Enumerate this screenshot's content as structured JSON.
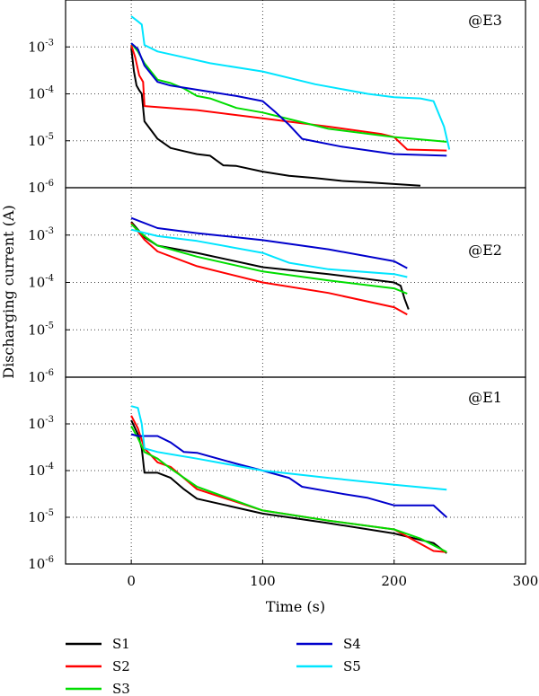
{
  "chart_data": {
    "type": "line",
    "xlabel": "Time (s)",
    "ylabel": "Discharging current (A)",
    "xlim": [
      -50,
      300
    ],
    "x_ticks": [
      "0",
      "100",
      "200",
      "300"
    ],
    "x_tick_values": [
      0,
      100,
      200,
      300
    ],
    "y_scale": "log",
    "ylim": [
      1e-06,
      0.01
    ],
    "y_tick_base": "10",
    "y_tick_exponents": [
      "-3",
      "-4",
      "-5",
      "-6"
    ],
    "grid": true,
    "legend_position": "bottom",
    "panels": [
      {
        "annotation": "@E3",
        "series": [
          {
            "name": "S1",
            "color": "#000000",
            "points": [
              [
                0,
                0.00095
              ],
              [
                2,
                0.0003
              ],
              [
                4,
                0.00015
              ],
              [
                6,
                0.00012
              ],
              [
                8,
                0.0001
              ],
              [
                10,
                2.6e-05
              ],
              [
                20,
                1.1e-05
              ],
              [
                30,
                7e-06
              ],
              [
                40,
                6e-06
              ],
              [
                50,
                5.2e-06
              ],
              [
                60,
                4.8e-06
              ],
              [
                70,
                3e-06
              ],
              [
                80,
                2.9e-06
              ],
              [
                100,
                2.2e-06
              ],
              [
                120,
                1.8e-06
              ],
              [
                140,
                1.6e-06
              ],
              [
                160,
                1.4e-06
              ],
              [
                180,
                1.3e-06
              ],
              [
                200,
                1.2e-06
              ],
              [
                220,
                1.1e-06
              ]
            ]
          },
          {
            "name": "S2",
            "color": "#ff0000",
            "points": [
              [
                0,
                0.0011
              ],
              [
                3,
                0.0006
              ],
              [
                6,
                0.00025
              ],
              [
                9,
                0.00018
              ],
              [
                10,
                5.5e-05
              ],
              [
                50,
                4.5e-05
              ],
              [
                100,
                3e-05
              ],
              [
                150,
                2e-05
              ],
              [
                190,
                1.4e-05
              ],
              [
                200,
                1.2e-05
              ],
              [
                210,
                6.5e-06
              ],
              [
                240,
                6.2e-06
              ]
            ]
          },
          {
            "name": "S3",
            "color": "#00dd00",
            "points": [
              [
                0,
                0.0012
              ],
              [
                5,
                0.0008
              ],
              [
                10,
                0.00045
              ],
              [
                15,
                0.0003
              ],
              [
                20,
                0.0002
              ],
              [
                30,
                0.00017
              ],
              [
                40,
                0.00013
              ],
              [
                50,
                9e-05
              ],
              [
                60,
                8e-05
              ],
              [
                80,
                5e-05
              ],
              [
                100,
                4e-05
              ],
              [
                150,
                1.8e-05
              ],
              [
                200,
                1.2e-05
              ],
              [
                240,
                9.5e-06
              ]
            ]
          },
          {
            "name": "S4",
            "color": "#0000cc",
            "points": [
              [
                0,
                0.0012
              ],
              [
                5,
                0.0009
              ],
              [
                10,
                0.0004
              ],
              [
                20,
                0.00018
              ],
              [
                30,
                0.00015
              ],
              [
                60,
                0.00011
              ],
              [
                80,
                9e-05
              ],
              [
                100,
                7e-05
              ],
              [
                110,
                4e-05
              ],
              [
                120,
                2.2e-05
              ],
              [
                130,
                1.1e-05
              ],
              [
                160,
                7.5e-06
              ],
              [
                200,
                5.2e-06
              ],
              [
                240,
                4.8e-06
              ]
            ]
          },
          {
            "name": "S5",
            "color": "#00e5ff",
            "points": [
              [
                0,
                0.0045
              ],
              [
                5,
                0.0035
              ],
              [
                8,
                0.003
              ],
              [
                10,
                0.0011
              ],
              [
                20,
                0.0008
              ],
              [
                40,
                0.0006
              ],
              [
                60,
                0.00045
              ],
              [
                100,
                0.0003
              ],
              [
                140,
                0.00016
              ],
              [
                180,
                0.0001
              ],
              [
                200,
                8.5e-05
              ],
              [
                220,
                8e-05
              ],
              [
                230,
                7e-05
              ],
              [
                238,
                2e-05
              ],
              [
                242,
                6.5e-06
              ]
            ]
          }
        ]
      },
      {
        "annotation": "@E2",
        "series": [
          {
            "name": "S1",
            "color": "#000000",
            "points": [
              [
                0,
                0.0019
              ],
              [
                10,
                0.0009
              ],
              [
                20,
                0.0006
              ],
              [
                50,
                0.00042
              ],
              [
                100,
                0.00021
              ],
              [
                150,
                0.00015
              ],
              [
                200,
                0.0001
              ],
              [
                205,
                8.5e-05
              ],
              [
                208,
                4.5e-05
              ],
              [
                211,
                2.7e-05
              ]
            ]
          },
          {
            "name": "S2",
            "color": "#ff0000",
            "points": [
              [
                0,
                0.0018
              ],
              [
                10,
                0.0008
              ],
              [
                20,
                0.00045
              ],
              [
                50,
                0.00022
              ],
              [
                100,
                0.0001
              ],
              [
                150,
                6e-05
              ],
              [
                200,
                3e-05
              ],
              [
                210,
                2.1e-05
              ]
            ]
          },
          {
            "name": "S3",
            "color": "#00dd00",
            "points": [
              [
                0,
                0.0017
              ],
              [
                10,
                0.00095
              ],
              [
                20,
                0.0006
              ],
              [
                50,
                0.00035
              ],
              [
                100,
                0.00017
              ],
              [
                150,
                0.00011
              ],
              [
                200,
                7.5e-05
              ],
              [
                210,
                5.8e-05
              ]
            ]
          },
          {
            "name": "S4",
            "color": "#0000cc",
            "points": [
              [
                0,
                0.0023
              ],
              [
                20,
                0.0014
              ],
              [
                50,
                0.0011
              ],
              [
                100,
                0.00078
              ],
              [
                150,
                0.0005
              ],
              [
                200,
                0.00028
              ],
              [
                210,
                0.0002
              ]
            ]
          },
          {
            "name": "S5",
            "color": "#00e5ff",
            "points": [
              [
                0,
                0.0013
              ],
              [
                20,
                0.00095
              ],
              [
                50,
                0.00075
              ],
              [
                100,
                0.00042
              ],
              [
                120,
                0.00026
              ],
              [
                150,
                0.00019
              ],
              [
                200,
                0.00015
              ],
              [
                210,
                0.00013
              ]
            ]
          }
        ]
      },
      {
        "annotation": "@E1",
        "series": [
          {
            "name": "S1",
            "color": "#000000",
            "points": [
              [
                0,
                0.0012
              ],
              [
                5,
                0.0006
              ],
              [
                8,
                0.0003
              ],
              [
                10,
                9e-05
              ],
              [
                20,
                9e-05
              ],
              [
                30,
                7e-05
              ],
              [
                40,
                4e-05
              ],
              [
                50,
                2.5e-05
              ],
              [
                100,
                1.2e-05
              ],
              [
                150,
                7.5e-06
              ],
              [
                200,
                4.5e-06
              ],
              [
                230,
                2.8e-06
              ],
              [
                240,
                1.7e-06
              ]
            ]
          },
          {
            "name": "S2",
            "color": "#ff0000",
            "points": [
              [
                0,
                0.0015
              ],
              [
                5,
                0.0008
              ],
              [
                10,
                0.0003
              ],
              [
                20,
                0.00015
              ],
              [
                30,
                0.00012
              ],
              [
                50,
                4e-05
              ],
              [
                100,
                1.4e-05
              ],
              [
                150,
                8.5e-06
              ],
              [
                200,
                5.5e-06
              ],
              [
                230,
                1.9e-06
              ],
              [
                240,
                1.8e-06
              ]
            ]
          },
          {
            "name": "S3",
            "color": "#00dd00",
            "points": [
              [
                0,
                0.0009
              ],
              [
                5,
                0.0005
              ],
              [
                10,
                0.00025
              ],
              [
                20,
                0.00018
              ],
              [
                30,
                0.00011
              ],
              [
                50,
                4.5e-05
              ],
              [
                100,
                1.4e-05
              ],
              [
                150,
                8.5e-06
              ],
              [
                200,
                5.5e-06
              ],
              [
                220,
                3.5e-06
              ],
              [
                240,
                1.8e-06
              ]
            ]
          },
          {
            "name": "S4",
            "color": "#0000cc",
            "points": [
              [
                0,
                0.0006
              ],
              [
                5,
                0.00055
              ],
              [
                10,
                0.00055
              ],
              [
                20,
                0.00055
              ],
              [
                30,
                0.0004
              ],
              [
                40,
                0.00025
              ],
              [
                50,
                0.00024
              ],
              [
                80,
                0.00014
              ],
              [
                100,
                0.0001
              ],
              [
                120,
                7e-05
              ],
              [
                130,
                4.5e-05
              ],
              [
                160,
                3.2e-05
              ],
              [
                180,
                2.6e-05
              ],
              [
                200,
                1.8e-05
              ],
              [
                230,
                1.8e-05
              ],
              [
                240,
                1e-05
              ]
            ]
          },
          {
            "name": "S5",
            "color": "#00e5ff",
            "points": [
              [
                0,
                0.0024
              ],
              [
                5,
                0.0022
              ],
              [
                8,
                0.001
              ],
              [
                10,
                0.0003
              ],
              [
                20,
                0.00025
              ],
              [
                50,
                0.00018
              ],
              [
                100,
                0.0001
              ],
              [
                150,
                7e-05
              ],
              [
                200,
                5e-05
              ],
              [
                240,
                3.9e-05
              ]
            ]
          }
        ]
      }
    ],
    "legend": [
      {
        "name": "S1",
        "color": "#000000"
      },
      {
        "name": "S2",
        "color": "#ff0000"
      },
      {
        "name": "S3",
        "color": "#00dd00"
      },
      {
        "name": "S4",
        "color": "#0000cc"
      },
      {
        "name": "S5",
        "color": "#00e5ff"
      }
    ]
  }
}
